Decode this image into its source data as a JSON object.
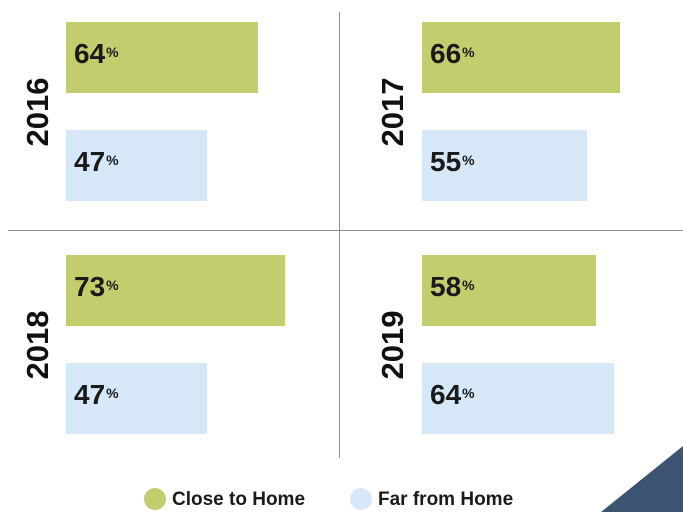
{
  "chart_data": {
    "type": "bar",
    "orientation": "horizontal",
    "unit": "%",
    "xlim": [
      0,
      100
    ],
    "grid": false,
    "legend_position": "bottom",
    "series_names": [
      "Close to Home",
      "Far from Home"
    ],
    "panels": [
      {
        "year": "2016",
        "series": [
          {
            "name": "Close to Home",
            "value": 64
          },
          {
            "name": "Far from Home",
            "value": 47
          }
        ]
      },
      {
        "year": "2017",
        "series": [
          {
            "name": "Close to Home",
            "value": 66
          },
          {
            "name": "Far from Home",
            "value": 55
          }
        ]
      },
      {
        "year": "2018",
        "series": [
          {
            "name": "Close to Home",
            "value": 73
          },
          {
            "name": "Far from Home",
            "value": 47
          }
        ]
      },
      {
        "year": "2019",
        "series": [
          {
            "name": "Close to Home",
            "value": 58
          },
          {
            "name": "Far from Home",
            "value": 64
          }
        ]
      }
    ]
  },
  "legend": {
    "close_label": "Close to Home",
    "far_label": "Far from Home"
  },
  "colors": {
    "close": "#c4cd6e",
    "far": "#d6e8f7",
    "text": "#1a1a1a",
    "divider": "#8e8e8e",
    "corner": "#3c5472"
  }
}
